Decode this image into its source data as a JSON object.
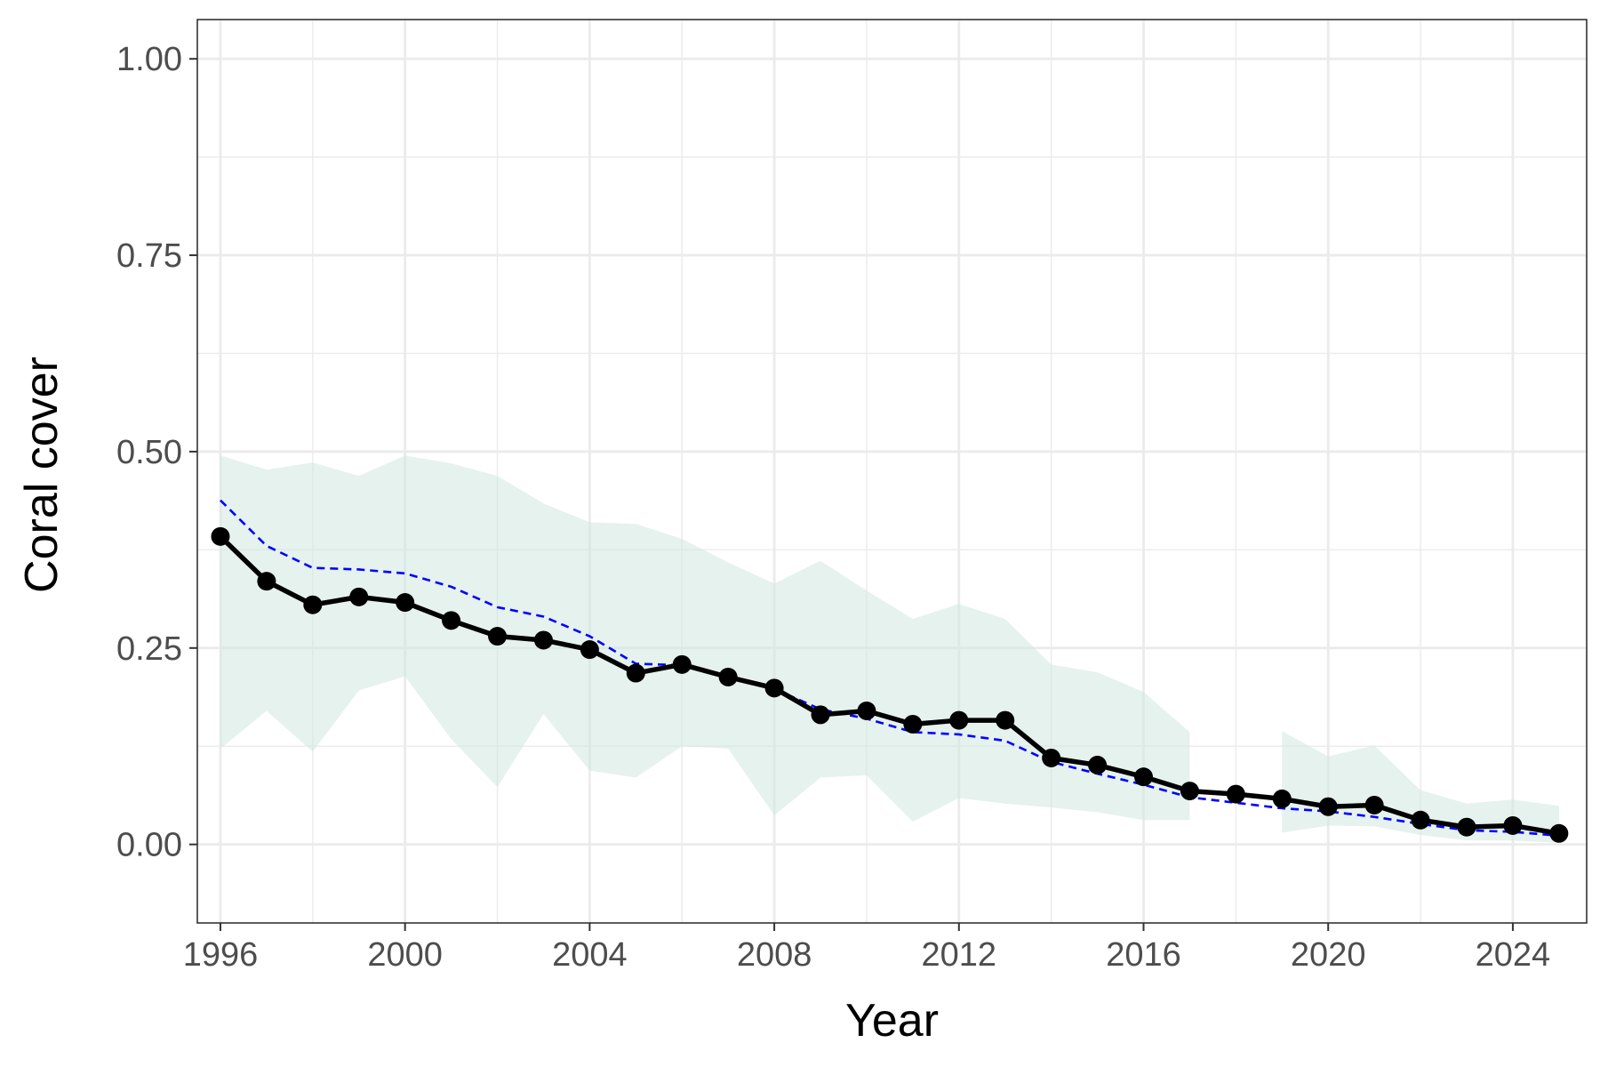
{
  "chart_data": {
    "type": "line",
    "xlabel": "Year",
    "ylabel": "Coral cover",
    "xlim": [
      1995.5,
      2025.6
    ],
    "ylim": [
      -0.1,
      1.05
    ],
    "x_ticks": [
      1996,
      2000,
      2004,
      2008,
      2012,
      2016,
      2020,
      2024
    ],
    "y_ticks": [
      0.0,
      0.25,
      0.5,
      0.75,
      1.0
    ],
    "y_tick_labels": [
      "0.00",
      "0.25",
      "0.50",
      "0.75",
      "1.00"
    ],
    "grid": true,
    "legend": "none",
    "colors": {
      "observed": "#000000",
      "modelled": "#0000ff",
      "band": "#cfe8df",
      "grid": "#ebebeb",
      "panel_border": "#333333"
    },
    "series": [
      {
        "x": [
          1996,
          1997,
          1998,
          1999,
          2000,
          2001,
          2002,
          2003,
          2004,
          2005,
          2006,
          2007,
          2008,
          2009,
          2010,
          2011,
          2012,
          2013,
          2014,
          2015,
          2016,
          2017,
          2018,
          2019,
          2020,
          2021,
          2022,
          2023,
          2024,
          2025
        ],
        "values": [
          0.392,
          0.335,
          0.305,
          0.315,
          0.308,
          0.285,
          0.265,
          0.26,
          0.248,
          0.218,
          0.229,
          0.213,
          0.199,
          0.165,
          0.17,
          0.153,
          0.158,
          0.158,
          0.11,
          0.101,
          0.086,
          0.068,
          0.064,
          0.058,
          0.048,
          0.05,
          0.031,
          0.022,
          0.024,
          0.014
        ],
        "style": "solid-with-points"
      },
      {
        "x": [
          1996,
          1997,
          1998,
          1999,
          2000,
          2001,
          2002,
          2003,
          2004,
          2005,
          2006,
          2007,
          2008,
          2009,
          2010,
          2011,
          2012,
          2013,
          2014,
          2015,
          2016,
          2017,
          2018,
          2019,
          2020,
          2021,
          2022,
          2023,
          2024,
          2025
        ],
        "values": [
          0.438,
          0.38,
          0.352,
          0.35,
          0.345,
          0.328,
          0.302,
          0.29,
          0.265,
          0.23,
          0.228,
          0.215,
          0.198,
          0.172,
          0.16,
          0.143,
          0.14,
          0.132,
          0.105,
          0.09,
          0.076,
          0.06,
          0.053,
          0.046,
          0.042,
          0.035,
          0.026,
          0.018,
          0.016,
          0.011
        ],
        "style": "dashed"
      }
    ],
    "bands": [
      {
        "x": [
          1996,
          1997,
          1998,
          1999,
          2000,
          2001,
          2002,
          2003,
          2004,
          2005,
          2006,
          2007,
          2008,
          2009,
          2010,
          2011,
          2012,
          2013,
          2014,
          2015,
          2016,
          2017
        ],
        "upper": [
          0.495,
          0.477,
          0.486,
          0.469,
          0.495,
          0.485,
          0.469,
          0.434,
          0.41,
          0.408,
          0.389,
          0.359,
          0.332,
          0.361,
          0.323,
          0.287,
          0.306,
          0.287,
          0.229,
          0.219,
          0.194,
          0.143
        ],
        "lower": [
          0.122,
          0.17,
          0.118,
          0.196,
          0.214,
          0.134,
          0.073,
          0.166,
          0.094,
          0.085,
          0.125,
          0.122,
          0.037,
          0.085,
          0.088,
          0.029,
          0.059,
          0.052,
          0.047,
          0.041,
          0.031,
          0.031
        ]
      },
      {
        "x": [
          2019,
          2020,
          2021,
          2022,
          2023,
          2024,
          2025
        ],
        "upper": [
          0.144,
          0.112,
          0.126,
          0.069,
          0.052,
          0.057,
          0.049
        ],
        "lower": [
          0.015,
          0.024,
          0.023,
          0.012,
          0.005,
          0.005,
          0.002
        ]
      }
    ]
  }
}
